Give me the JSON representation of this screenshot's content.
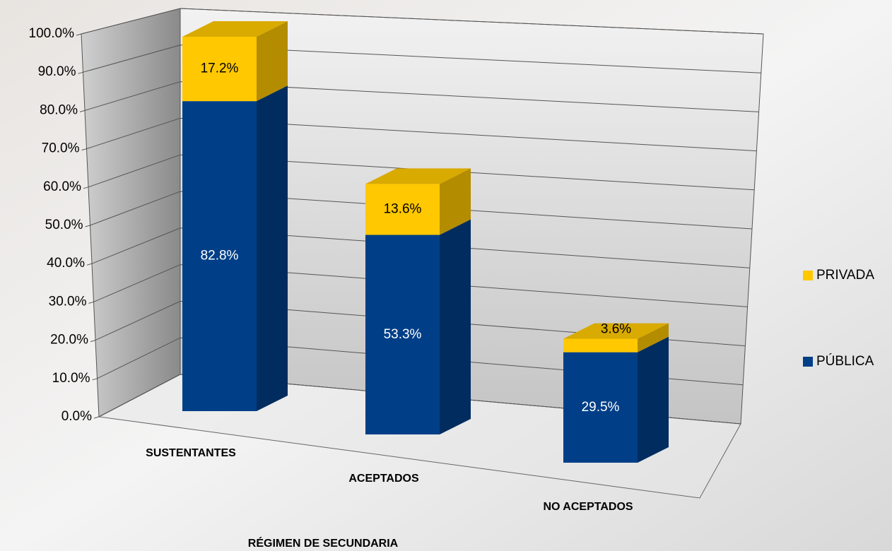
{
  "chart_data": {
    "type": "bar3d_stacked",
    "categories": [
      "SUSTENTANTES",
      "ACEPTADOS",
      "NO ACEPTADOS"
    ],
    "x_label": "RÉGIMEN DE SECUNDARIA",
    "series": [
      {
        "name": "PÚBLICA",
        "color": "#003f87",
        "values": [
          82.8,
          53.3,
          29.5
        ],
        "value_labels": [
          "82.8%",
          "53.3%",
          "29.5%"
        ]
      },
      {
        "name": "PRIVADA",
        "color": "#ffc800",
        "values": [
          17.2,
          13.6,
          3.6
        ],
        "value_labels": [
          "17.2%",
          "13.6%",
          "3.6%"
        ]
      }
    ],
    "ylim": [
      0,
      100
    ],
    "yticks": [
      {
        "value": 0,
        "label": "0.0%"
      },
      {
        "value": 10,
        "label": "10.0%"
      },
      {
        "value": 20,
        "label": "20.0%"
      },
      {
        "value": 30,
        "label": "30.0%"
      },
      {
        "value": 40,
        "label": "40.0%"
      },
      {
        "value": 50,
        "label": "50.0%"
      },
      {
        "value": 60,
        "label": "60.0%"
      },
      {
        "value": 70,
        "label": "70.0%"
      },
      {
        "value": 80,
        "label": "80.0%"
      },
      {
        "value": 90,
        "label": "90.0%"
      },
      {
        "value": 100,
        "label": "100.0%"
      }
    ],
    "grid": true,
    "legend": "right"
  }
}
